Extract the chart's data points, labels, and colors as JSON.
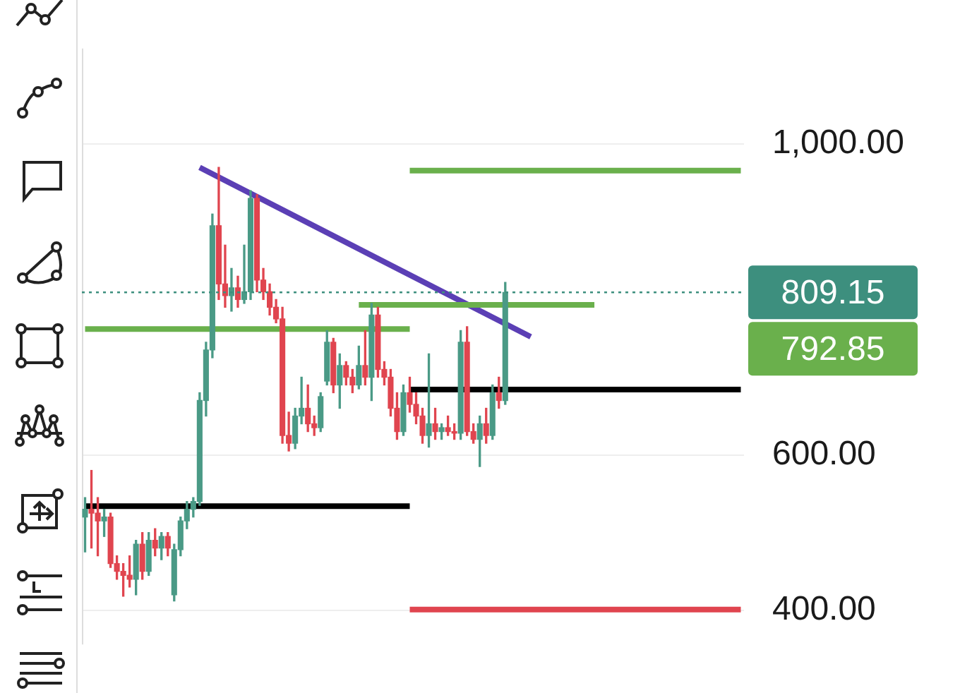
{
  "chart_data": {
    "type": "candlestick",
    "categories": [
      null,
      null,
      null,
      null,
      null,
      null,
      null,
      null,
      null,
      null,
      null,
      null,
      null,
      null,
      null,
      null,
      null,
      null,
      null,
      null,
      null,
      null,
      null,
      null,
      null,
      null,
      null,
      null,
      null,
      null,
      null,
      null,
      null,
      null,
      null,
      null,
      null,
      null,
      null,
      null,
      null,
      null,
      null,
      null,
      null,
      null,
      null,
      null,
      null,
      null,
      null,
      null,
      null,
      null,
      null,
      null,
      null,
      null,
      null,
      null,
      null,
      null,
      null,
      null,
      null,
      null,
      null,
      null,
      null,
      null,
      null,
      null,
      null,
      null,
      null,
      null,
      null,
      null,
      null,
      null,
      null,
      null,
      null,
      null,
      null,
      null,
      null,
      null,
      null,
      null,
      null,
      null,
      null,
      null,
      null,
      null,
      null,
      null,
      null,
      null,
      null,
      null,
      null,
      null
    ],
    "ohlc": [
      [
        520,
        545,
        475,
        530
      ],
      [
        530,
        580,
        480,
        525
      ],
      [
        525,
        545,
        470,
        515
      ],
      [
        515,
        530,
        495,
        520
      ],
      [
        520,
        525,
        455,
        460
      ],
      [
        460,
        470,
        440,
        450
      ],
      [
        450,
        460,
        418,
        445
      ],
      [
        445,
        470,
        430,
        440
      ],
      [
        440,
        490,
        420,
        485
      ],
      [
        485,
        500,
        440,
        450
      ],
      [
        450,
        500,
        445,
        490
      ],
      [
        490,
        505,
        470,
        480
      ],
      [
        480,
        500,
        465,
        495
      ],
      [
        495,
        500,
        470,
        480
      ],
      [
        420,
        485,
        412,
        478
      ],
      [
        478,
        520,
        470,
        515
      ],
      [
        515,
        540,
        505,
        530
      ],
      [
        530,
        545,
        520,
        540
      ],
      [
        540,
        680,
        535,
        670
      ],
      [
        670,
        745,
        650,
        735
      ],
      [
        735,
        910,
        725,
        895
      ],
      [
        895,
        970,
        800,
        820
      ],
      [
        820,
        870,
        790,
        805
      ],
      [
        805,
        840,
        785,
        815
      ],
      [
        815,
        830,
        790,
        800
      ],
      [
        800,
        870,
        795,
        810
      ],
      [
        810,
        940,
        800,
        930
      ],
      [
        930,
        935,
        810,
        825
      ],
      [
        825,
        840,
        800,
        810
      ],
      [
        810,
        820,
        780,
        790
      ],
      [
        790,
        800,
        770,
        775
      ],
      [
        775,
        790,
        615,
        625
      ],
      [
        625,
        655,
        605,
        615
      ],
      [
        615,
        660,
        608,
        650
      ],
      [
        650,
        700,
        640,
        660
      ],
      [
        660,
        690,
        630,
        640
      ],
      [
        640,
        650,
        625,
        635
      ],
      [
        635,
        680,
        630,
        675
      ],
      [
        695,
        760,
        690,
        745
      ],
      [
        745,
        750,
        680,
        690
      ],
      [
        690,
        730,
        660,
        715
      ],
      [
        715,
        720,
        690,
        700
      ],
      [
        700,
        710,
        680,
        690
      ],
      [
        690,
        740,
        685,
        715
      ],
      [
        715,
        760,
        690,
        700
      ],
      [
        700,
        795,
        670,
        780
      ],
      [
        780,
        790,
        700,
        710
      ],
      [
        710,
        720,
        690,
        700
      ],
      [
        700,
        710,
        650,
        660
      ],
      [
        660,
        680,
        620,
        630
      ],
      [
        630,
        690,
        625,
        680
      ],
      [
        680,
        700,
        655,
        665
      ],
      [
        665,
        680,
        640,
        650
      ],
      [
        650,
        660,
        615,
        625
      ],
      [
        625,
        730,
        610,
        640
      ],
      [
        640,
        660,
        620,
        630
      ],
      [
        630,
        640,
        620,
        635
      ],
      [
        635,
        650,
        625,
        630
      ],
      [
        630,
        640,
        620,
        628
      ],
      [
        628,
        760,
        620,
        745
      ],
      [
        745,
        765,
        625,
        630
      ],
      [
        630,
        640,
        615,
        620
      ],
      [
        620,
        650,
        585,
        640
      ],
      [
        640,
        660,
        615,
        625
      ],
      [
        625,
        690,
        620,
        680
      ],
      [
        680,
        700,
        660,
        670
      ],
      [
        670,
        822,
        665,
        809.15
      ],
      null,
      null,
      null,
      null,
      null,
      null,
      null,
      null,
      null,
      null,
      null,
      null,
      null,
      null,
      null,
      null,
      null,
      null,
      null,
      null,
      null,
      null,
      null,
      null,
      null,
      null,
      null,
      null,
      null,
      null,
      null,
      null,
      null,
      null,
      null,
      null,
      null
    ],
    "colors": [
      "#4a9a86",
      "#e0454f",
      "#e0454f",
      "#4a9a86",
      "#e0454f",
      "#e0454f",
      "#e0454f",
      "#e0454f",
      "#4a9a86",
      "#e0454f",
      "#4a9a86",
      "#e0454f",
      "#4a9a86",
      "#e0454f",
      "#4a9a86",
      "#4a9a86",
      "#4a9a86",
      "#4a9a86",
      "#4a9a86",
      "#4a9a86",
      "#4a9a86",
      "#e0454f",
      "#e0454f",
      "#4a9a86",
      "#e0454f",
      "#4a9a86",
      "#4a9a86",
      "#e0454f",
      "#e0454f",
      "#e0454f",
      "#e0454f",
      "#e0454f",
      "#e0454f",
      "#4a9a86",
      "#4a9a86",
      "#e0454f",
      "#e0454f",
      "#4a9a86",
      "#4a9a86",
      "#e0454f",
      "#4a9a86",
      "#e0454f",
      "#e0454f",
      "#4a9a86",
      "#e0454f",
      "#4a9a86",
      "#e0454f",
      "#e0454f",
      "#e0454f",
      "#e0454f",
      "#4a9a86",
      "#e0454f",
      "#e0454f",
      "#e0454f",
      "#4a9a86",
      "#e0454f",
      "#4a9a86",
      "#e0454f",
      "#e0454f",
      "#4a9a86",
      "#e0454f",
      "#e0454f",
      "#4a9a86",
      "#e0454f",
      "#4a9a86",
      "#e0454f",
      "#4a9a86",
      null,
      null,
      null,
      null,
      null,
      null,
      null,
      null,
      null,
      null,
      null,
      null,
      null,
      null,
      null,
      null,
      null,
      null,
      null,
      null,
      null,
      null,
      null,
      null,
      null,
      null,
      null,
      null,
      null,
      null,
      null,
      null,
      null,
      null,
      null,
      null,
      null
    ],
    "series": [
      {
        "type": "line",
        "color": "#000000",
        "values": [
          534,
          null,
          null,
          null,
          null,
          null,
          null,
          null,
          null,
          null,
          null,
          null,
          null,
          null,
          null,
          null,
          null,
          null,
          null,
          null,
          null,
          null,
          null,
          null,
          null,
          null,
          null,
          null,
          null,
          null,
          null,
          null,
          null,
          null,
          null,
          null,
          null,
          null,
          null,
          null,
          null,
          null,
          null,
          null,
          null,
          null,
          null,
          null,
          null,
          null,
          null,
          534,
          null,
          null,
          null,
          null,
          null,
          null,
          null,
          null,
          null,
          null,
          null,
          null,
          null,
          null,
          null,
          null,
          null,
          null,
          null,
          null,
          null,
          null,
          null,
          null,
          null,
          null,
          null,
          null,
          null,
          null,
          null,
          null,
          null,
          null,
          null,
          null,
          null,
          null,
          null,
          null,
          null,
          null,
          null,
          null,
          null,
          null,
          null,
          null,
          null,
          null,
          null,
          null
        ]
      },
      {
        "type": "line",
        "color": "#6ab04c",
        "values": [
          762,
          null,
          null,
          null,
          null,
          null,
          null,
          null,
          null,
          null,
          null,
          null,
          null,
          null,
          null,
          null,
          null,
          null,
          null,
          null,
          null,
          null,
          null,
          null,
          null,
          null,
          null,
          null,
          null,
          null,
          null,
          null,
          null,
          null,
          null,
          null,
          null,
          null,
          null,
          null,
          null,
          null,
          null,
          null,
          null,
          null,
          null,
          null,
          null,
          null,
          null,
          762,
          null,
          null,
          null,
          null,
          null,
          null,
          null,
          null,
          null,
          null,
          null,
          null,
          null,
          null,
          null,
          null,
          null,
          null,
          null,
          null,
          null,
          null,
          null,
          null,
          null,
          null,
          null,
          null,
          null,
          null,
          null,
          null,
          null,
          null,
          null,
          null,
          null,
          null,
          null,
          null,
          null,
          null,
          null,
          null,
          null,
          null,
          null,
          null,
          null,
          null,
          null,
          null
        ]
      },
      {
        "type": "line",
        "color": "#6ab04c",
        "values": [
          null,
          null,
          null,
          null,
          null,
          null,
          null,
          null,
          null,
          null,
          null,
          null,
          null,
          null,
          null,
          null,
          null,
          null,
          null,
          null,
          null,
          null,
          null,
          null,
          null,
          null,
          null,
          null,
          null,
          null,
          null,
          null,
          null,
          null,
          null,
          null,
          null,
          null,
          null,
          null,
          null,
          null,
          null,
          null,
          null,
          null,
          null,
          null,
          null,
          null,
          null,
          966,
          null,
          null,
          null,
          null,
          null,
          null,
          null,
          null,
          null,
          null,
          null,
          null,
          null,
          null,
          null,
          null,
          null,
          null,
          null,
          null,
          null,
          null,
          null,
          null,
          null,
          null,
          null,
          null,
          null,
          null,
          null,
          null,
          null,
          null,
          null,
          null,
          null,
          null,
          null,
          null,
          null,
          null,
          null,
          null,
          null,
          null,
          null,
          null,
          null,
          null,
          null,
          966
        ]
      },
      {
        "type": "line",
        "color": "#000000",
        "values": [
          null,
          null,
          null,
          null,
          null,
          null,
          null,
          null,
          null,
          null,
          null,
          null,
          null,
          null,
          null,
          null,
          null,
          null,
          null,
          null,
          null,
          null,
          null,
          null,
          null,
          null,
          null,
          null,
          null,
          null,
          null,
          null,
          null,
          null,
          null,
          null,
          null,
          null,
          null,
          null,
          null,
          null,
          null,
          null,
          null,
          null,
          null,
          null,
          null,
          null,
          null,
          684,
          null,
          null,
          null,
          null,
          null,
          null,
          null,
          null,
          null,
          null,
          null,
          null,
          null,
          null,
          null,
          null,
          null,
          null,
          null,
          null,
          null,
          null,
          null,
          null,
          null,
          null,
          null,
          null,
          null,
          null,
          null,
          null,
          null,
          null,
          null,
          null,
          null,
          null,
          null,
          null,
          null,
          null,
          null,
          null,
          null,
          null,
          null,
          null,
          null,
          null,
          null,
          684
        ]
      },
      {
        "type": "line",
        "color": "#e0454f",
        "values": [
          null,
          null,
          null,
          null,
          null,
          null,
          null,
          null,
          null,
          null,
          null,
          null,
          null,
          null,
          null,
          null,
          null,
          null,
          null,
          null,
          null,
          null,
          null,
          null,
          null,
          null,
          null,
          null,
          null,
          null,
          null,
          null,
          null,
          null,
          null,
          null,
          null,
          null,
          null,
          null,
          null,
          null,
          null,
          null,
          null,
          null,
          null,
          null,
          null,
          null,
          null,
          401,
          null,
          null,
          null,
          null,
          null,
          null,
          null,
          null,
          null,
          null,
          null,
          null,
          null,
          null,
          null,
          null,
          null,
          null,
          null,
          null,
          null,
          null,
          null,
          null,
          null,
          null,
          null,
          null,
          null,
          null,
          null,
          null,
          null,
          null,
          null,
          null,
          null,
          null,
          null,
          null,
          null,
          null,
          null,
          null,
          null,
          null,
          null,
          null,
          null,
          null,
          null,
          401
        ]
      },
      {
        "type": "line",
        "color": "#6ab04c",
        "values": [
          null,
          null,
          null,
          null,
          null,
          null,
          null,
          null,
          null,
          null,
          null,
          null,
          null,
          null,
          null,
          null,
          null,
          null,
          null,
          null,
          null,
          null,
          null,
          null,
          null,
          null,
          null,
          null,
          null,
          null,
          null,
          null,
          null,
          null,
          null,
          null,
          null,
          null,
          null,
          null,
          null,
          null,
          null,
          793,
          null,
          null,
          null,
          null,
          null,
          null,
          null,
          null,
          null,
          null,
          null,
          null,
          null,
          null,
          null,
          null,
          null,
          null,
          null,
          null,
          null,
          null,
          null,
          null,
          null,
          null,
          null,
          null,
          null,
          null,
          null,
          null,
          null,
          null,
          null,
          null,
          793,
          null,
          null,
          null,
          null,
          null,
          null,
          null,
          null,
          null,
          null,
          null,
          null,
          null,
          null,
          null,
          null,
          null,
          null,
          null,
          null,
          null,
          null,
          null
        ]
      },
      {
        "type": "line",
        "color": "#5b3fb5",
        "values": [
          null,
          null,
          null,
          null,
          null,
          null,
          null,
          null,
          null,
          null,
          null,
          null,
          null,
          null,
          null,
          null,
          null,
          null,
          970,
          null,
          null,
          null,
          null,
          null,
          null,
          null,
          null,
          null,
          null,
          null,
          null,
          null,
          null,
          null,
          null,
          null,
          null,
          null,
          null,
          null,
          null,
          null,
          null,
          null,
          null,
          null,
          null,
          null,
          null,
          null,
          null,
          null,
          null,
          null,
          null,
          null,
          null,
          null,
          null,
          null,
          null,
          null,
          null,
          null,
          null,
          null,
          null,
          null,
          null,
          null,
          752,
          null,
          null,
          null,
          null,
          null,
          null,
          null,
          null,
          null,
          null,
          null,
          null,
          null,
          null,
          null,
          null,
          null,
          null,
          null,
          null,
          null,
          null,
          null,
          null,
          null,
          null,
          null,
          null,
          null,
          null,
          null,
          null,
          null
        ]
      }
    ],
    "ref_lines": [
      {
        "axis": "y",
        "value": 809.15,
        "label": "809.15",
        "color": "#3d8f7e",
        "line_style": "dotted"
      }
    ],
    "annotations": [
      "792.85"
    ],
    "ylim": [
      356,
      1123
    ],
    "yticks": [
      {
        "value": 400,
        "label": "400.00"
      },
      {
        "value": 600,
        "label": "600.00"
      },
      {
        "value": 1000,
        "label": "1,000.00"
      }
    ],
    "grid": "y"
  }
}
